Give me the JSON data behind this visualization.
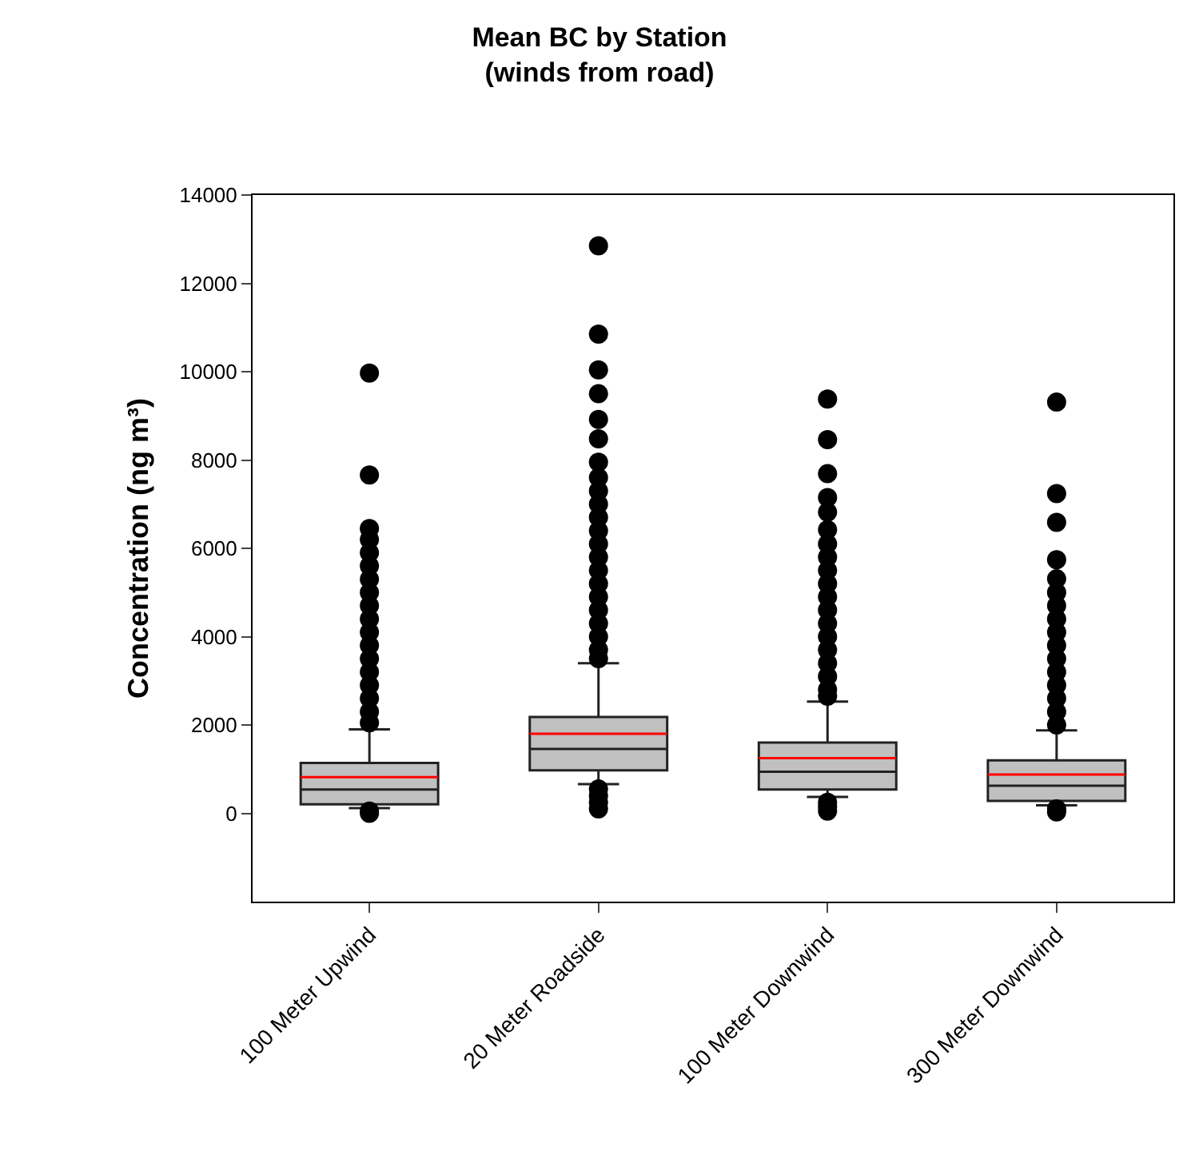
{
  "chart_data": {
    "type": "box",
    "title": "Mean BC by Station\n(winds from road)",
    "ylabel": "Concentration (ng m³)",
    "categories": [
      "100 Meter Upwind",
      "20 Meter Roadside",
      "100 Meter Downwind",
      "300 Meter Downwind"
    ],
    "ylim": [
      -2000,
      14000
    ],
    "yticks": [
      0,
      2000,
      4000,
      6000,
      8000,
      10000,
      12000,
      14000
    ],
    "marker": "circle",
    "series": [
      {
        "color": "#c0c0c0",
        "boxes": [
          {
            "low": 120,
            "q1": 205,
            "median": 540,
            "q3": 1140,
            "high": 1900,
            "mean": 820,
            "outliers": [
              9970,
              7660,
              6450,
              6200,
              5900,
              5600,
              5300,
              5000,
              4700,
              4400,
              4100,
              3800,
              3500,
              3200,
              2900,
              2600,
              2300,
              2050,
              50,
              0
            ]
          },
          {
            "low": 660,
            "q1": 975,
            "median": 1455,
            "q3": 2180,
            "high": 3400,
            "mean": 1800,
            "outliers": [
              12850,
              10850,
              10040,
              9500,
              8920,
              8480,
              7950,
              7600,
              7300,
              7000,
              6700,
              6400,
              6100,
              5800,
              5500,
              5200,
              4900,
              4600,
              4300,
              4000,
              3700,
              3500,
              550,
              400,
              250,
              100
            ]
          },
          {
            "low": 370,
            "q1": 540,
            "median": 940,
            "q3": 1600,
            "high": 2530,
            "mean": 1250,
            "outliers": [
              9380,
              8460,
              7690,
              7150,
              6820,
              6420,
              6100,
              5800,
              5500,
              5200,
              4900,
              4600,
              4300,
              4000,
              3700,
              3400,
              3100,
              2800,
              2650,
              250,
              150,
              50
            ]
          },
          {
            "low": 180,
            "q1": 280,
            "median": 625,
            "q3": 1200,
            "high": 1880,
            "mean": 880,
            "outliers": [
              9310,
              7240,
              6590,
              5740,
              5310,
              5000,
              4700,
              4400,
              4100,
              3800,
              3500,
              3200,
              2900,
              2600,
              2300,
              2000,
              100,
              30
            ]
          }
        ]
      }
    ]
  }
}
